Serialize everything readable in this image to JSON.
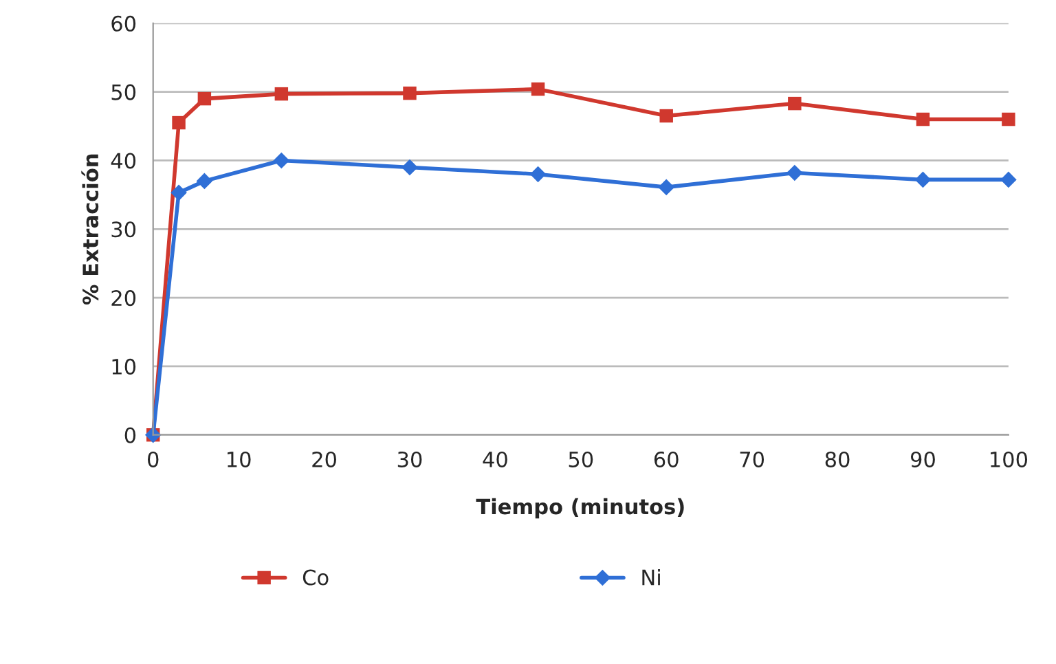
{
  "chart_data": {
    "type": "line",
    "xlabel": "Tiempo (minutos)",
    "ylabel": "% Extracción",
    "x": [
      0,
      3,
      6,
      15,
      30,
      45,
      60,
      75,
      90,
      100
    ],
    "series": [
      {
        "name": "Co",
        "color": "#d0382e",
        "marker": "square",
        "values": [
          0,
          45.5,
          49,
          49.7,
          49.8,
          50.4,
          46.5,
          48.3,
          46,
          46
        ]
      },
      {
        "name": "Ni",
        "color": "#2f6fd6",
        "marker": "diamond",
        "values": [
          0,
          35.3,
          37,
          40,
          39,
          38,
          36.1,
          38.2,
          37.2,
          37.2
        ]
      }
    ],
    "xlim": [
      0,
      100
    ],
    "xticks": [
      0,
      10,
      20,
      30,
      40,
      50,
      60,
      70,
      80,
      90,
      100
    ],
    "ylim": [
      0,
      60
    ],
    "yticks": [
      0,
      10,
      20,
      30,
      40,
      50,
      60
    ],
    "grid": "y",
    "legend": "bottom"
  }
}
